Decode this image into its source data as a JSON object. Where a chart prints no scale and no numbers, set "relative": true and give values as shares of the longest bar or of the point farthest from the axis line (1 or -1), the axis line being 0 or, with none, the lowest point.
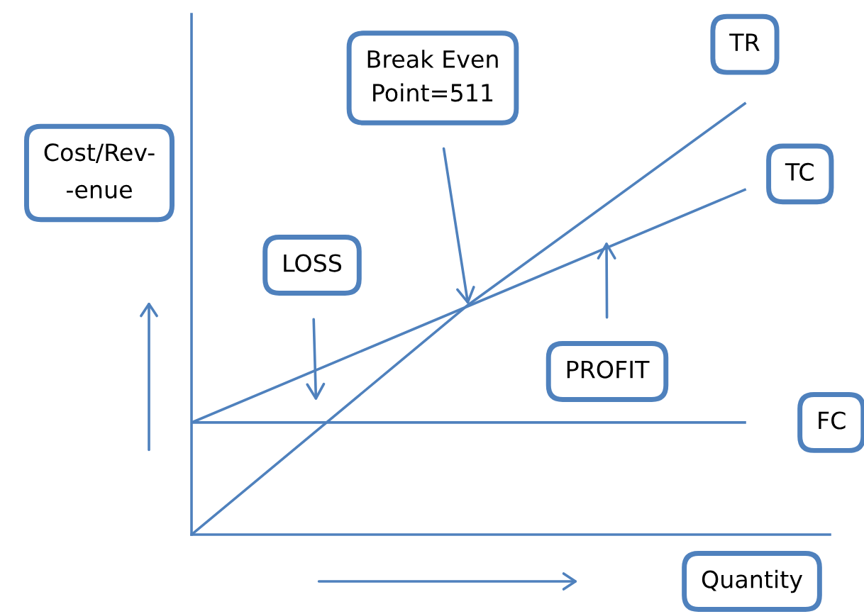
{
  "chart_data": {
    "type": "line",
    "relative": true,
    "categories": [
      null,
      null,
      null
    ],
    "series": [
      {
        "name": "TR",
        "color": "#4f81bd",
        "values": [
          0,
          0.533,
          1
        ]
      },
      {
        "name": "TC",
        "color": "#4f81bd",
        "values": [
          0.26,
          0.53,
          0.8
        ]
      },
      {
        "name": "FC",
        "color": "#4f81bd",
        "values": [
          0.26,
          0.26,
          0.26
        ]
      }
    ],
    "xlabel": "Quantity",
    "ylabel": "Cost/Rev-\n-enue",
    "annotations": [
      "Break Even\nPoint=511",
      "LOSS",
      "PROFIT"
    ],
    "grid": false,
    "legend": false,
    "marker": "none",
    "line_style": "solid"
  }
}
